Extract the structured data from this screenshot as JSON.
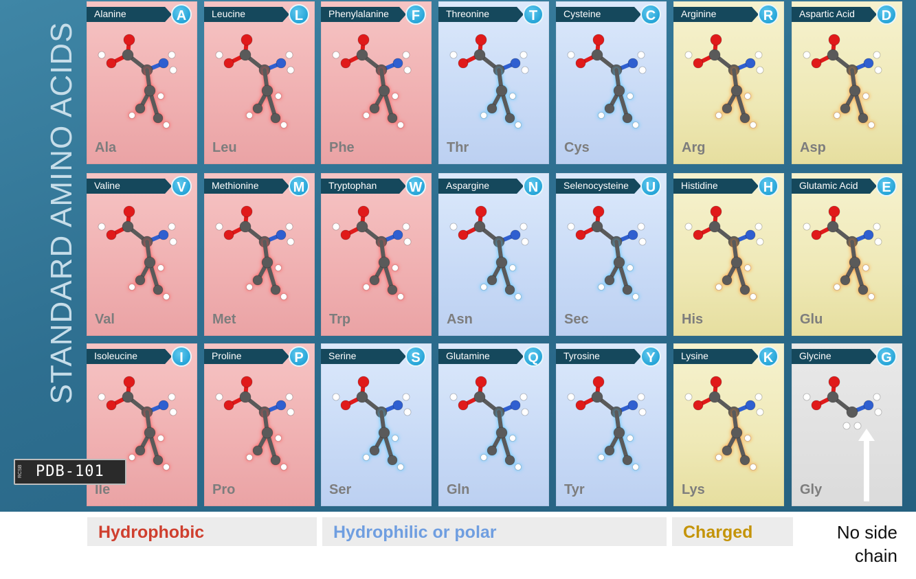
{
  "side_title": "STANDARD AMINO ACIDS",
  "logo": {
    "small_text": "RCSB",
    "text": "PDB-101"
  },
  "colors": {
    "hydrophobic": "#cf3f2e",
    "polar": "#6f9ee0",
    "charged": "#c4940a",
    "letter_badge": "#26a5d8",
    "banner": "#15485c",
    "carbon": "#5a5a5a",
    "oxygen": "#e01a1a",
    "nitrogen": "#2f5fd0",
    "hydrogen": "#ffffff",
    "sulfur": "#e8e230",
    "selenium": "#e0961a"
  },
  "amino_acids": [
    {
      "name": "Alanine",
      "letter": "A",
      "abbr": "Ala",
      "category": "hydrophobic"
    },
    {
      "name": "Leucine",
      "letter": "L",
      "abbr": "Leu",
      "category": "hydrophobic"
    },
    {
      "name": "Phenylalanine",
      "letter": "F",
      "abbr": "Phe",
      "category": "hydrophobic"
    },
    {
      "name": "Threonine",
      "letter": "T",
      "abbr": "Thr",
      "category": "polar"
    },
    {
      "name": "Cysteine",
      "letter": "C",
      "abbr": "Cys",
      "category": "polar"
    },
    {
      "name": "Arginine",
      "letter": "R",
      "abbr": "Arg",
      "category": "charged"
    },
    {
      "name": "Aspartic Acid",
      "letter": "D",
      "abbr": "Asp",
      "category": "charged"
    },
    {
      "name": "Valine",
      "letter": "V",
      "abbr": "Val",
      "category": "hydrophobic"
    },
    {
      "name": "Methionine",
      "letter": "M",
      "abbr": "Met",
      "category": "hydrophobic"
    },
    {
      "name": "Tryptophan",
      "letter": "W",
      "abbr": "Trp",
      "category": "hydrophobic"
    },
    {
      "name": "Aspargine",
      "letter": "N",
      "abbr": "Asn",
      "category": "polar"
    },
    {
      "name": "Selenocysteine",
      "letter": "U",
      "abbr": "Sec",
      "category": "polar"
    },
    {
      "name": "Histidine",
      "letter": "H",
      "abbr": "His",
      "category": "charged"
    },
    {
      "name": "Glutamic Acid",
      "letter": "E",
      "abbr": "Glu",
      "category": "charged"
    },
    {
      "name": "Isoleucine",
      "letter": "I",
      "abbr": "Ile",
      "category": "hydrophobic"
    },
    {
      "name": "Proline",
      "letter": "P",
      "abbr": "Pro",
      "category": "hydrophobic"
    },
    {
      "name": "Serine",
      "letter": "S",
      "abbr": "Ser",
      "category": "polar"
    },
    {
      "name": "Glutamine",
      "letter": "Q",
      "abbr": "Gln",
      "category": "polar"
    },
    {
      "name": "Tyrosine",
      "letter": "Y",
      "abbr": "Tyr",
      "category": "polar"
    },
    {
      "name": "Lysine",
      "letter": "K",
      "abbr": "Lys",
      "category": "charged"
    },
    {
      "name": "Glycine",
      "letter": "G",
      "abbr": "Gly",
      "category": "neutral"
    }
  ],
  "legend": {
    "hydrophobic": "Hydrophobic",
    "polar": "Hydrophilic or polar",
    "charged": "Charged",
    "no_side_chain_line1": "No side",
    "no_side_chain_line2": "chain"
  }
}
